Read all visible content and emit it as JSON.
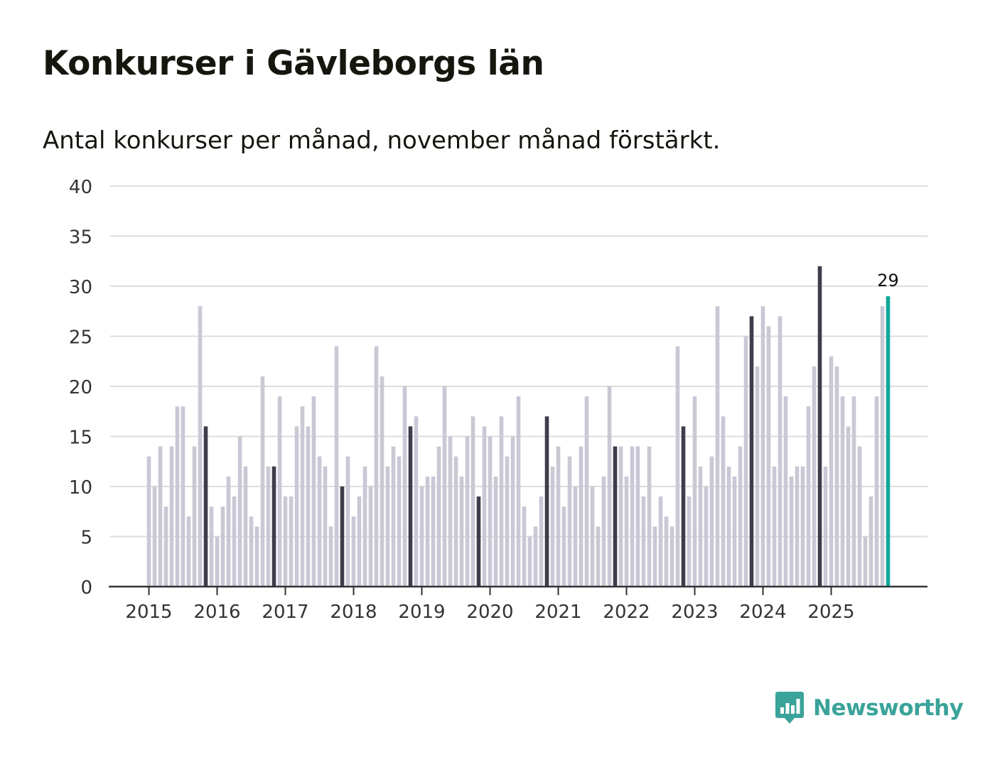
{
  "title": "Konkurser i Gävleborgs län",
  "subtitle": "Antal konkurser per månad, november månad förstärkt.",
  "logo": {
    "text": "Newsworthy",
    "icon": "chart-speech-bubble-icon"
  },
  "colors": {
    "bar": "#c9c8d5",
    "highlight": "#3e3d4c",
    "latest": "#12a89a",
    "grid": "#dddddd",
    "axis": "#333333"
  },
  "chart_data": {
    "type": "bar",
    "title": "Konkurser i Gävleborgs län",
    "subtitle": "Antal konkurser per månad, november månad förstärkt.",
    "xlabel": "",
    "ylabel": "",
    "ylim": [
      0,
      40
    ],
    "yticks": [
      "0",
      "5",
      "10",
      "15",
      "20",
      "25",
      "30",
      "35",
      "40"
    ],
    "xticks": [
      "2015",
      "2016",
      "2017",
      "2018",
      "2019",
      "2020",
      "2021",
      "2022",
      "2023",
      "2024",
      "2025"
    ],
    "start": "2015-01",
    "highlight_month": "november",
    "latest_label": "29",
    "values": [
      13,
      10,
      14,
      8,
      14,
      18,
      18,
      7,
      14,
      28,
      16,
      8,
      5,
      8,
      11,
      9,
      15,
      12,
      7,
      6,
      21,
      12,
      12,
      19,
      9,
      9,
      16,
      18,
      16,
      19,
      13,
      12,
      6,
      24,
      10,
      13,
      7,
      9,
      12,
      10,
      24,
      21,
      12,
      14,
      13,
      20,
      16,
      17,
      10,
      11,
      11,
      14,
      20,
      15,
      13,
      11,
      15,
      17,
      9,
      16,
      15,
      11,
      17,
      13,
      15,
      19,
      8,
      5,
      6,
      9,
      17,
      12,
      14,
      8,
      13,
      10,
      14,
      19,
      10,
      6,
      11,
      20,
      14,
      14,
      11,
      14,
      14,
      9,
      14,
      6,
      9,
      7,
      6,
      24,
      16,
      9,
      19,
      12,
      10,
      13,
      28,
      17,
      12,
      11,
      14,
      25,
      27,
      22,
      28,
      26,
      12,
      27,
      19,
      11,
      12,
      12,
      18,
      22,
      32,
      12,
      23,
      22,
      19,
      16,
      19,
      14,
      5,
      9,
      19,
      28,
      29
    ]
  }
}
